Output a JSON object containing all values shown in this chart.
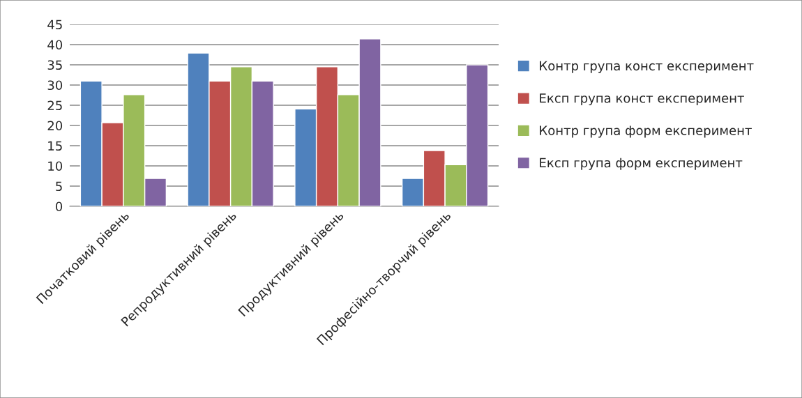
{
  "chart_data": {
    "type": "bar",
    "categories": [
      "Початковий рівень",
      "Репродуктивний рівень",
      "Продуктивний рівень",
      "Професійно-творчий рівень"
    ],
    "series": [
      {
        "name": "Контр група конст експеримент",
        "color": "#4f81bd",
        "values": [
          31.0,
          37.9,
          24.1,
          6.9
        ]
      },
      {
        "name": "Експ група конст експеримент",
        "color": "#c0504d",
        "values": [
          20.7,
          31.0,
          34.5,
          13.8
        ]
      },
      {
        "name": "Контр група форм експеримент",
        "color": "#9bbb59",
        "values": [
          27.6,
          34.5,
          27.6,
          10.3
        ]
      },
      {
        "name": "Експ група форм експеримент",
        "color": "#8064a2",
        "values": [
          6.9,
          31.0,
          41.4,
          35.0
        ]
      }
    ],
    "ylim": [
      0,
      45
    ],
    "yticks": [
      0,
      5,
      10,
      15,
      20,
      25,
      30,
      35,
      40,
      45
    ],
    "grid": "y",
    "legend": "right"
  }
}
